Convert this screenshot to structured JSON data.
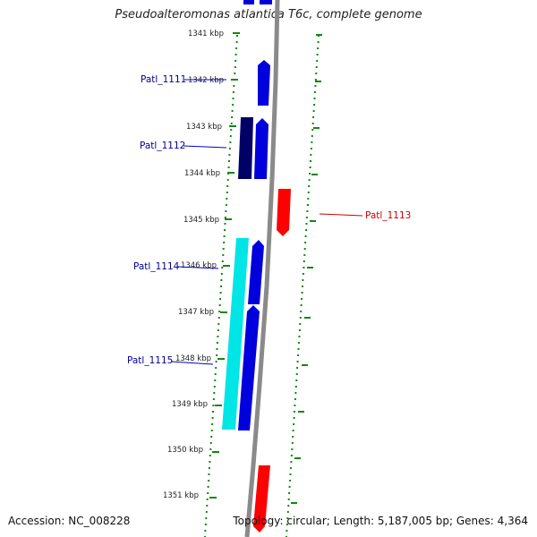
{
  "title": "Pseudoalteromonas atlantica T6c, complete genome",
  "footer": {
    "accession": "Accession: NC_008228",
    "summary": "Topology: circular; Length: 5,187,005 bp; Genes: 4,364"
  },
  "colors": {
    "forward_gene": "#0000dd",
    "reverse_gene": "#ff0000",
    "dark_gene": "#000066",
    "cyan_gene": "#00e5e5",
    "backbone": "#888888",
    "ticks": "#118811",
    "forward_label": "#000099",
    "reverse_label": "#cc0000"
  },
  "scale_labels": [
    "1341 kbp",
    "1342 kbp",
    "1343 kbp",
    "1344 kbp",
    "1345 kbp",
    "1346 kbp",
    "1347 kbp",
    "1348 kbp",
    "1349 kbp",
    "1350 kbp",
    "1351 kbp"
  ],
  "gene_labels": [
    {
      "id": "Patl_1111",
      "strand": "forward"
    },
    {
      "id": "Patl_1112",
      "strand": "forward"
    },
    {
      "id": "Patl_1113",
      "strand": "reverse"
    },
    {
      "id": "Patl_1114",
      "strand": "forward"
    },
    {
      "id": "Patl_1115",
      "strand": "forward"
    }
  ]
}
